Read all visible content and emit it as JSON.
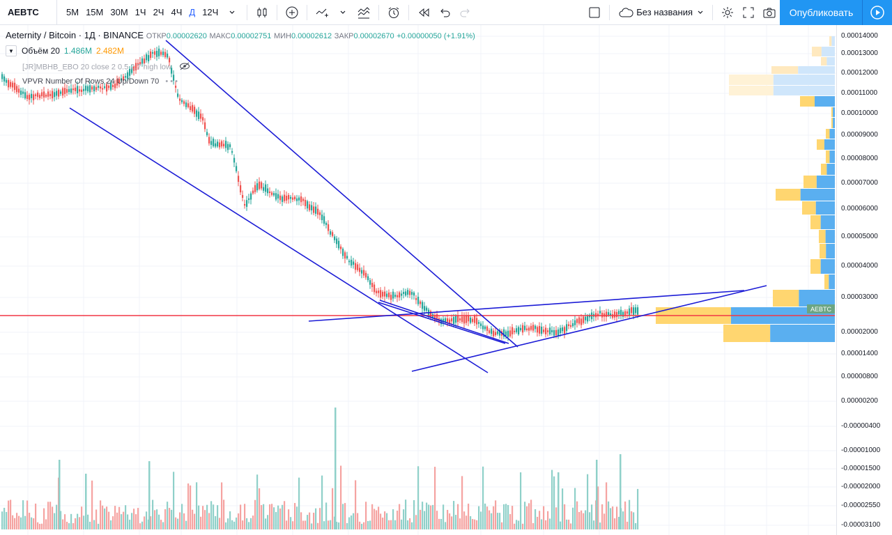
{
  "toolbar": {
    "symbol": "AEBTC",
    "intervals": [
      "5М",
      "15М",
      "30М",
      "1Ч",
      "2Ч",
      "4Ч",
      "Д",
      "12Ч"
    ],
    "active_interval": "Д",
    "icons": [
      "interval-chevron-icon",
      "candles-icon",
      "add-indicator-icon",
      "compare-icon",
      "indicators-icon",
      "alert-icon",
      "replay-icon",
      "undo-icon",
      "redo-icon",
      "layout-square-icon",
      "cloud-icon",
      "settings-gear-icon",
      "fullscreen-icon",
      "camera-icon",
      "play-icon"
    ],
    "layout_name": "Без названия",
    "publish_label": "Опубликовать"
  },
  "legend": {
    "title": "Aeternity / Bitcoin · 1Д · BINANCE",
    "open_label": "ОТКР",
    "open": "0.00002620",
    "high_label": "МАКС",
    "high": "0.00002751",
    "low_label": "МИН",
    "low": "0.00002612",
    "close_label": "ЗАКР",
    "close": "0.00002670",
    "change": "+0.00000050 (+1.91%)",
    "volume_label": "Объём 20",
    "volume_value": "1.486M",
    "volume_ma": "2.482M",
    "indicator_1": "[JR]MBHB_EBO 20 close 2 0.5 2.7 high low",
    "indicator_2": "VPVR Number Of Rows 24 Up/Down 70"
  },
  "price_axis": {
    "ticks": [
      "0.00014000",
      "0.00013000",
      "0.00012000",
      "0.00011000",
      "0.00010000",
      "0.00009000",
      "0.00008000",
      "0.00007000",
      "0.00006000",
      "0.00005000",
      "0.00004000",
      "0.00003000",
      "0.00002000",
      "0.00001400",
      "0.00000800",
      "0.00000200",
      "-0.00000400",
      "-0.00001000",
      "-0.00001500",
      "-0.00002000",
      "-0.00002550",
      "-0.00003100"
    ],
    "symbol_tag": "AEBTC"
  },
  "colors": {
    "up": "#26a69a",
    "down": "#ef5350",
    "trendline": "#1c1cd6",
    "hline": "#f23645",
    "accent": "#2196f3"
  }
}
